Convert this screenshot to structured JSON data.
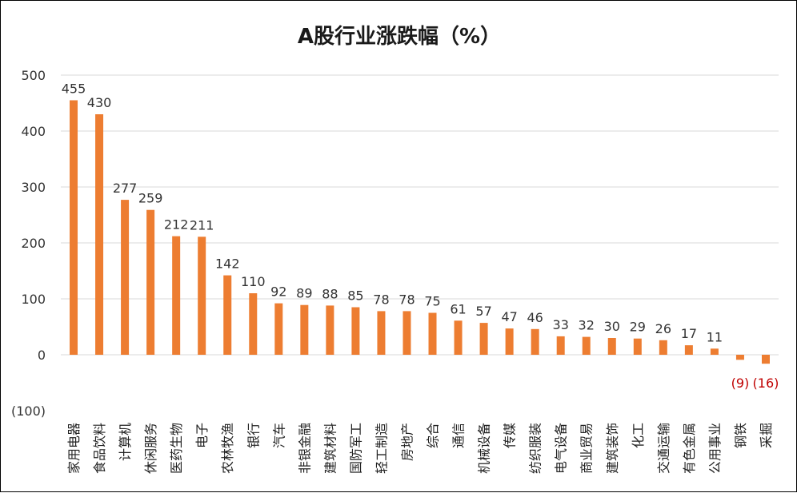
{
  "chart_data": {
    "type": "bar",
    "title": "A股行业涨跌幅（%）",
    "xlabel": "",
    "ylabel": "",
    "ylim": [
      -100,
      500
    ],
    "yticks": [
      500,
      400,
      300,
      200,
      100,
      0,
      -100
    ],
    "ytick_labels": [
      "500",
      "400",
      "300",
      "200",
      "100",
      "0",
      "(100)"
    ],
    "grid": true,
    "legend": "none",
    "categories": [
      "家用电器",
      "食品饮料",
      "计算机",
      "休闲服务",
      "医药生物",
      "电子",
      "农林牧渔",
      "银行",
      "汽车",
      "非银金融",
      "建筑材料",
      "国防军工",
      "轻工制造",
      "房地产",
      "综合",
      "通信",
      "机械设备",
      "传媒",
      "纺织服装",
      "电气设备",
      "商业贸易",
      "建筑装饰",
      "化工",
      "交通运输",
      "有色金属",
      "公用事业",
      "钢铁",
      "采掘"
    ],
    "values": [
      455,
      430,
      277,
      259,
      212,
      211,
      142,
      110,
      92,
      89,
      88,
      85,
      78,
      78,
      75,
      61,
      57,
      47,
      46,
      33,
      32,
      30,
      29,
      26,
      17,
      11,
      -9,
      -16
    ],
    "data_labels": [
      "455",
      "430",
      "277",
      "259",
      "212",
      "211",
      "142",
      "110",
      "92",
      "89",
      "88",
      "85",
      "78",
      "78",
      "75",
      "61",
      "57",
      "47",
      "46",
      "33",
      "32",
      "30",
      "29",
      "26",
      "17",
      "11",
      "(9)",
      "(16)"
    ],
    "bar_color": "#ED7D31",
    "negative_label_color": "#C00000",
    "label_color": "#333333",
    "grid_color": "#d9d9d9"
  }
}
